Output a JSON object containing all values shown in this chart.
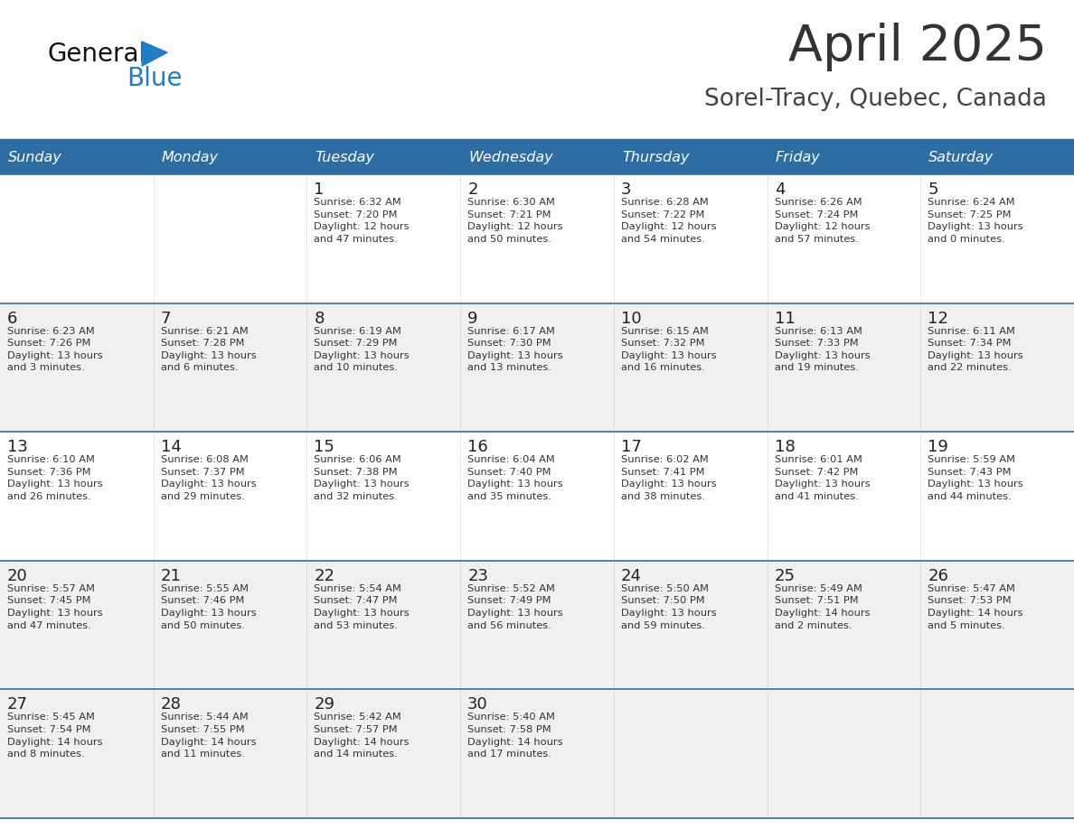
{
  "title": "April 2025",
  "subtitle": "Sorel-Tracy, Quebec, Canada",
  "header_bg": "#2E6DA4",
  "header_text_color": "#FFFFFF",
  "cell_bg_white": "#FFFFFF",
  "cell_bg_gray": "#F0F0F0",
  "border_color": "#2E6DA4",
  "day_names": [
    "Sunday",
    "Monday",
    "Tuesday",
    "Wednesday",
    "Thursday",
    "Friday",
    "Saturday"
  ],
  "title_color": "#333333",
  "subtitle_color": "#444444",
  "number_color": "#222222",
  "info_color": "#333333",
  "logo_general_color": "#111111",
  "logo_blue_color": "#1E7CC8",
  "weeks": [
    [
      {
        "day": 0,
        "info": ""
      },
      {
        "day": 0,
        "info": ""
      },
      {
        "day": 1,
        "info": "Sunrise: 6:32 AM\nSunset: 7:20 PM\nDaylight: 12 hours\nand 47 minutes."
      },
      {
        "day": 2,
        "info": "Sunrise: 6:30 AM\nSunset: 7:21 PM\nDaylight: 12 hours\nand 50 minutes."
      },
      {
        "day": 3,
        "info": "Sunrise: 6:28 AM\nSunset: 7:22 PM\nDaylight: 12 hours\nand 54 minutes."
      },
      {
        "day": 4,
        "info": "Sunrise: 6:26 AM\nSunset: 7:24 PM\nDaylight: 12 hours\nand 57 minutes."
      },
      {
        "day": 5,
        "info": "Sunrise: 6:24 AM\nSunset: 7:25 PM\nDaylight: 13 hours\nand 0 minutes."
      }
    ],
    [
      {
        "day": 6,
        "info": "Sunrise: 6:23 AM\nSunset: 7:26 PM\nDaylight: 13 hours\nand 3 minutes."
      },
      {
        "day": 7,
        "info": "Sunrise: 6:21 AM\nSunset: 7:28 PM\nDaylight: 13 hours\nand 6 minutes."
      },
      {
        "day": 8,
        "info": "Sunrise: 6:19 AM\nSunset: 7:29 PM\nDaylight: 13 hours\nand 10 minutes."
      },
      {
        "day": 9,
        "info": "Sunrise: 6:17 AM\nSunset: 7:30 PM\nDaylight: 13 hours\nand 13 minutes."
      },
      {
        "day": 10,
        "info": "Sunrise: 6:15 AM\nSunset: 7:32 PM\nDaylight: 13 hours\nand 16 minutes."
      },
      {
        "day": 11,
        "info": "Sunrise: 6:13 AM\nSunset: 7:33 PM\nDaylight: 13 hours\nand 19 minutes."
      },
      {
        "day": 12,
        "info": "Sunrise: 6:11 AM\nSunset: 7:34 PM\nDaylight: 13 hours\nand 22 minutes."
      }
    ],
    [
      {
        "day": 13,
        "info": "Sunrise: 6:10 AM\nSunset: 7:36 PM\nDaylight: 13 hours\nand 26 minutes."
      },
      {
        "day": 14,
        "info": "Sunrise: 6:08 AM\nSunset: 7:37 PM\nDaylight: 13 hours\nand 29 minutes."
      },
      {
        "day": 15,
        "info": "Sunrise: 6:06 AM\nSunset: 7:38 PM\nDaylight: 13 hours\nand 32 minutes."
      },
      {
        "day": 16,
        "info": "Sunrise: 6:04 AM\nSunset: 7:40 PM\nDaylight: 13 hours\nand 35 minutes."
      },
      {
        "day": 17,
        "info": "Sunrise: 6:02 AM\nSunset: 7:41 PM\nDaylight: 13 hours\nand 38 minutes."
      },
      {
        "day": 18,
        "info": "Sunrise: 6:01 AM\nSunset: 7:42 PM\nDaylight: 13 hours\nand 41 minutes."
      },
      {
        "day": 19,
        "info": "Sunrise: 5:59 AM\nSunset: 7:43 PM\nDaylight: 13 hours\nand 44 minutes."
      }
    ],
    [
      {
        "day": 20,
        "info": "Sunrise: 5:57 AM\nSunset: 7:45 PM\nDaylight: 13 hours\nand 47 minutes."
      },
      {
        "day": 21,
        "info": "Sunrise: 5:55 AM\nSunset: 7:46 PM\nDaylight: 13 hours\nand 50 minutes."
      },
      {
        "day": 22,
        "info": "Sunrise: 5:54 AM\nSunset: 7:47 PM\nDaylight: 13 hours\nand 53 minutes."
      },
      {
        "day": 23,
        "info": "Sunrise: 5:52 AM\nSunset: 7:49 PM\nDaylight: 13 hours\nand 56 minutes."
      },
      {
        "day": 24,
        "info": "Sunrise: 5:50 AM\nSunset: 7:50 PM\nDaylight: 13 hours\nand 59 minutes."
      },
      {
        "day": 25,
        "info": "Sunrise: 5:49 AM\nSunset: 7:51 PM\nDaylight: 14 hours\nand 2 minutes."
      },
      {
        "day": 26,
        "info": "Sunrise: 5:47 AM\nSunset: 7:53 PM\nDaylight: 14 hours\nand 5 minutes."
      }
    ],
    [
      {
        "day": 27,
        "info": "Sunrise: 5:45 AM\nSunset: 7:54 PM\nDaylight: 14 hours\nand 8 minutes."
      },
      {
        "day": 28,
        "info": "Sunrise: 5:44 AM\nSunset: 7:55 PM\nDaylight: 14 hours\nand 11 minutes."
      },
      {
        "day": 29,
        "info": "Sunrise: 5:42 AM\nSunset: 7:57 PM\nDaylight: 14 hours\nand 14 minutes."
      },
      {
        "day": 30,
        "info": "Sunrise: 5:40 AM\nSunset: 7:58 PM\nDaylight: 14 hours\nand 17 minutes."
      },
      {
        "day": 0,
        "info": ""
      },
      {
        "day": 0,
        "info": ""
      },
      {
        "day": 0,
        "info": ""
      }
    ]
  ],
  "fig_width": 11.88,
  "fig_height": 9.18,
  "dpi": 100
}
